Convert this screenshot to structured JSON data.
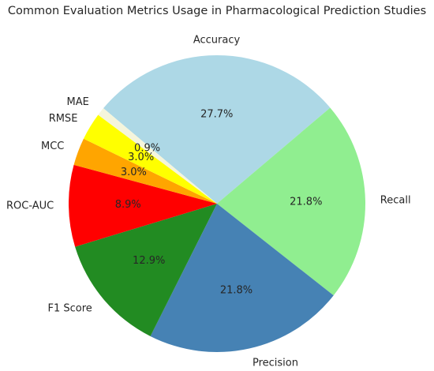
{
  "chart_data": {
    "type": "pie",
    "title": "Common Evaluation Metrics Usage in Pharmacological Prediction Studies",
    "start_angle_deg": 140,
    "direction": "clockwise",
    "slices": [
      {
        "label": "Accuracy",
        "value": 27.7,
        "pct_label": "27.7%",
        "color": "#add8e6"
      },
      {
        "label": "Recall",
        "value": 21.8,
        "pct_label": "21.8%",
        "color": "#90ee90"
      },
      {
        "label": "Precision",
        "value": 21.8,
        "pct_label": "21.8%",
        "color": "#4682b4"
      },
      {
        "label": "F1 Score",
        "value": 12.9,
        "pct_label": "12.9%",
        "color": "#228b22"
      },
      {
        "label": "ROC-AUC",
        "value": 8.9,
        "pct_label": "8.9%",
        "color": "#ff0000"
      },
      {
        "label": "MCC",
        "value": 3.0,
        "pct_label": "3.0%",
        "color": "#ffa500"
      },
      {
        "label": "RMSE",
        "value": 3.0,
        "pct_label": "3.0%",
        "color": "#ffff00"
      },
      {
        "label": "MAE",
        "value": 0.9,
        "pct_label": "0.9%",
        "color": "#f5f5dc"
      }
    ]
  }
}
